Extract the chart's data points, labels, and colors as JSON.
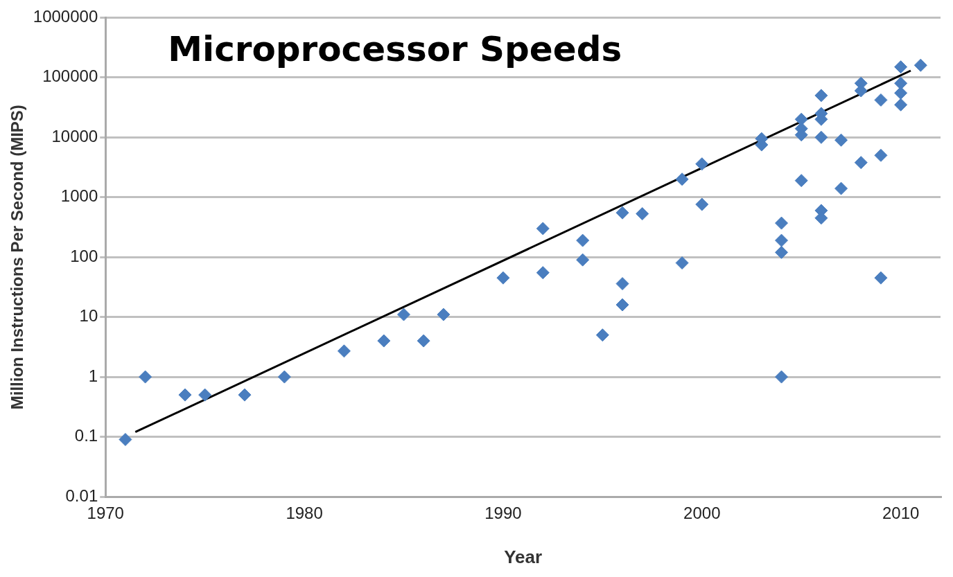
{
  "chart_data": {
    "type": "scatter",
    "title": "Microprocessor Speeds",
    "xlabel": "Year",
    "ylabel": "Million Instructions Per Second (MIPS)",
    "log": "y",
    "grid": "y",
    "legend": false,
    "marker": "diamond",
    "xlim": [
      1970,
      2012
    ],
    "xticks": [
      1970,
      1980,
      1990,
      2000,
      2010
    ],
    "ylim": [
      0.01,
      1000000
    ],
    "yticks": [
      {
        "value": 0.01,
        "label": "0.01"
      },
      {
        "value": 0.1,
        "label": "0.1"
      },
      1,
      10,
      100,
      1000,
      10000,
      100000,
      1000000
    ],
    "series": [
      {
        "color": "#4a7ebf",
        "x": [
          1971,
          1972,
          1974,
          1975,
          1977,
          1979,
          1982,
          1984,
          1985,
          1986,
          1987,
          1990,
          1992,
          1992,
          1994,
          1994,
          1995,
          1996,
          1996,
          1996,
          1997,
          1999,
          1999,
          2000,
          2000,
          2003,
          2003,
          2004,
          2004,
          2004,
          2004,
          2005,
          2005,
          2005,
          2005,
          2006,
          2006,
          2006,
          2006,
          2006,
          2006,
          2007,
          2007,
          2008,
          2008,
          2008,
          2009,
          2009,
          2009,
          2010,
          2010,
          2010,
          2010,
          2011
        ],
        "values": [
          0.09,
          1,
          0.5,
          0.5,
          0.5,
          1,
          2.7,
          4,
          11,
          4,
          11,
          45,
          300,
          55,
          190,
          90,
          5,
          550,
          36,
          16,
          530,
          2000,
          80,
          3600,
          760,
          7500,
          9500,
          370,
          190,
          120,
          1,
          20000,
          14000,
          11000,
          1900,
          50000,
          25000,
          20000,
          10000,
          600,
          450,
          9000,
          1400,
          80000,
          60000,
          3800,
          42000,
          5000,
          45,
          150000,
          80000,
          55000,
          35000,
          160000
        ]
      },
      {
        "type": "line",
        "color": "#000000",
        "marker": "none",
        "x": [
          1971.5,
          2010.5
        ],
        "values": [
          0.12,
          130000
        ]
      }
    ]
  }
}
